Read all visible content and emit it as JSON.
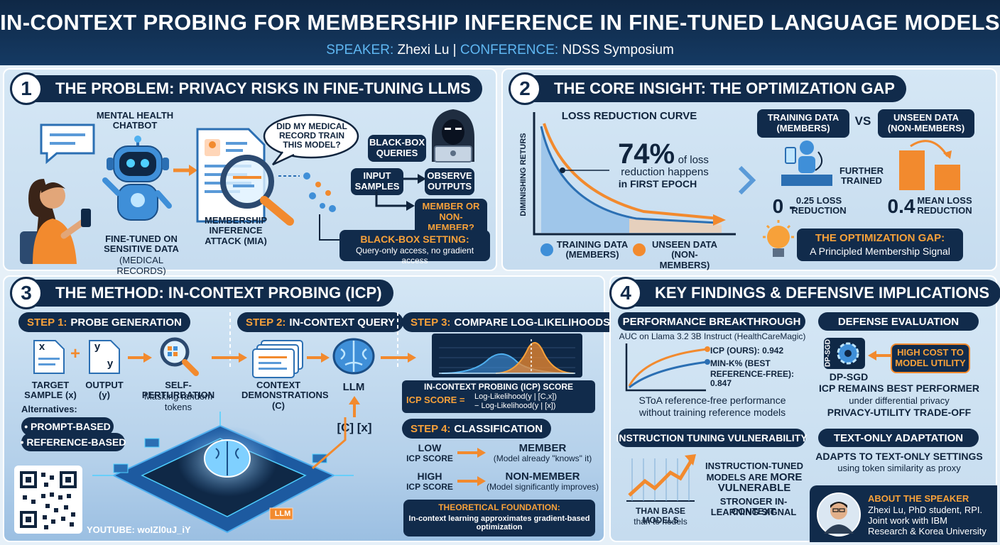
{
  "header": {
    "title": "IN-CONTEXT PROBING FOR MEMBERSHIP INFERENCE IN FINE-TUNED LANGUAGE MODELS",
    "speaker_label": "SPEAKER:",
    "speaker": "Zhexi Lu",
    "separator": "|",
    "conference_label": "CONFERENCE:",
    "conference": "NDSS Symposium"
  },
  "s1": {
    "num": "1",
    "title": "THE PROBLEM: PRIVACY RISKS IN FINE-TUNING LLMS",
    "chatbot_label": "MENTAL HEALTH CHATBOT",
    "finetuned_label": "FINE-TUNED ON SENSITIVE DATA",
    "finetuned_sub": "(MEDICAL RECORDS)",
    "mia_label": "MEMBERSHIP INFERENCE ATTACK (MIA)",
    "speech": "DID MY MEDICAL RECORD TRAIN THIS MODEL?",
    "blackbox_queries": "BLACK-BOX QUERIES",
    "input_samples": "INPUT SAMPLES",
    "observe_outputs": "OBSERVE OUTPUTS",
    "member_q": "MEMBER OR NON-MEMBER?",
    "setting_title": "BLACK-BOX SETTING:",
    "setting_desc": "Query-only access, no gradient access"
  },
  "s2": {
    "num": "2",
    "title": "THE CORE INSIGHT: THE OPTIMIZATION GAP",
    "curve_title": "LOSS REDUCTION CURVE",
    "yaxis": "DIMINISHING RETURS",
    "stat_big": "74%",
    "stat_text1": "of loss",
    "stat_text2": "reduction happens",
    "stat_text3": "in FIRST EPOCH",
    "legend_train": "TRAINING DATA (MEMBERS)",
    "legend_unseen": "UNSEEN DATA (NON-MEMBERS)",
    "box_train": "TRAINING DATA (MEMBERS)",
    "vs": "VS",
    "box_unseen": "UNSEEN DATA (NON-MEMBERS)",
    "further": "FURTHER TRAINED",
    "left_num": "0 -",
    "left_desc": "0.25 LOSS REDUCTION",
    "right_num": "0.4",
    "right_desc": "MEAN LOSS REDUCTION",
    "gap_title": "THE OPTIMIZATION GAP:",
    "gap_desc": "A Principled Membership Signal",
    "colors": {
      "members": "#3f8fd8",
      "nonmembers": "#f28a2e"
    }
  },
  "s3": {
    "num": "3",
    "title": "THE METHOD: IN-CONTEXT PROBING (ICP)",
    "step1_n": "STEP 1:",
    "step1": "PROBE GENERATION",
    "doc_x": "x",
    "doc_y1": "y",
    "doc_y2": "y",
    "target_label": "TARGET SAMPLE (x)",
    "output_label": "OUTPUT (y)",
    "selfpert_label": "SELF-PERTURBATION",
    "selfpert_desc": "Masking random tokens",
    "alternatives": "Alternatives:",
    "alt1": "• PROMPT-BASED",
    "alt2": "• REFERENCE-BASED",
    "step2_n": "STEP 2:",
    "step2": "IN-CONTEXT QUERY",
    "context_label": "CONTEXT DEMONSTRATIONS (C)",
    "llm": "LLM",
    "cx": "[C] [x]",
    "chip": "LLM",
    "step3_n": "STEP 3:",
    "step3": "COMPARE LOG-LIKELIHOODS",
    "score_title": "IN-CONTEXT PROBING (ICP) SCORE",
    "score_label": "ICP SCORE =",
    "score_f1": "Log-Likelihood(y | [C,x])",
    "score_f2": "− Log-Likelihood(y | [x])",
    "step4_n": "STEP 4:",
    "step4": "CLASSIFICATION",
    "low": "LOW",
    "high": "HIGH",
    "icp_score": "ICP SCORE",
    "member": "MEMBER",
    "member_desc": "(Model already \"knows\" it)",
    "nonmember": "NON-MEMBER",
    "nonmember_desc": "(Model significantly improves)",
    "theory_title": "THEORETICAL FOUNDATION:",
    "theory_desc": "In-context learning approximates gradient-based optimization",
    "youtube": "YOUTUBE: woIZl0uJ_iY"
  },
  "s4": {
    "num": "4",
    "title": "KEY FINDINGS & DEFENSIVE IMPLICATIONS",
    "perf_title": "PERFORMANCE BREAKTHROUGH",
    "perf_sub": "AUC on Llama 3.2 3B Instruct (HealthCareMagic)",
    "icp_line": "ICP (OURS): 0.942",
    "mink_line1": "MIN-K% (BEST",
    "mink_line2": "REFERENCE-FREE): 0.847",
    "chart_data": {
      "type": "line",
      "title": "",
      "xlabel": "",
      "ylabel": "",
      "series": [
        {
          "name": "ICP (OURS)",
          "values": [
            0.942
          ]
        },
        {
          "name": "MIN-K% (BEST REFERENCE-FREE)",
          "values": [
            0.847
          ]
        }
      ]
    },
    "perf_foot1": "SToA reference-free performance",
    "perf_foot2": "without training reference models",
    "def_title": "DEFENSE EVALUATION",
    "dpsgd_chip": "DP-SGD",
    "high_cost": "HIGH COST TO MODEL UTILITY",
    "dpsgd": "DP-SGD",
    "icp_best": "ICP REMAINS BEST PERFORMER",
    "under_dp": "under differential privacy",
    "tradeoff": "PRIVACY-UTILITY TRADE-OFF",
    "inst_title": "INSTRUCTION TUNING VULNERABILITY",
    "inst_l1": "INSTRUCTION-TUNED",
    "inst_l2a": "MODELS ARE",
    "inst_l2b": "MORE",
    "inst_l3": "VULNERABLE",
    "inst_l4": "STRONGER IN-CONTEXT",
    "inst_l5": "LEARNING SIGNAL",
    "than_base": "THAN BASE MODELS",
    "than_nodels": "than to nodels",
    "text_title": "TEXT-ONLY ADAPTATION",
    "text_l1": "ADAPTS TO TEXT-ONLY SETTINGS",
    "text_l2": "using token similarity as proxy"
  },
  "about": {
    "title": "ABOUT THE SPEAKER",
    "l1": "Zhexi Lu, PhD student, RPI.",
    "l2": "Joint work with IBM",
    "l3": "Research & Korea University"
  }
}
